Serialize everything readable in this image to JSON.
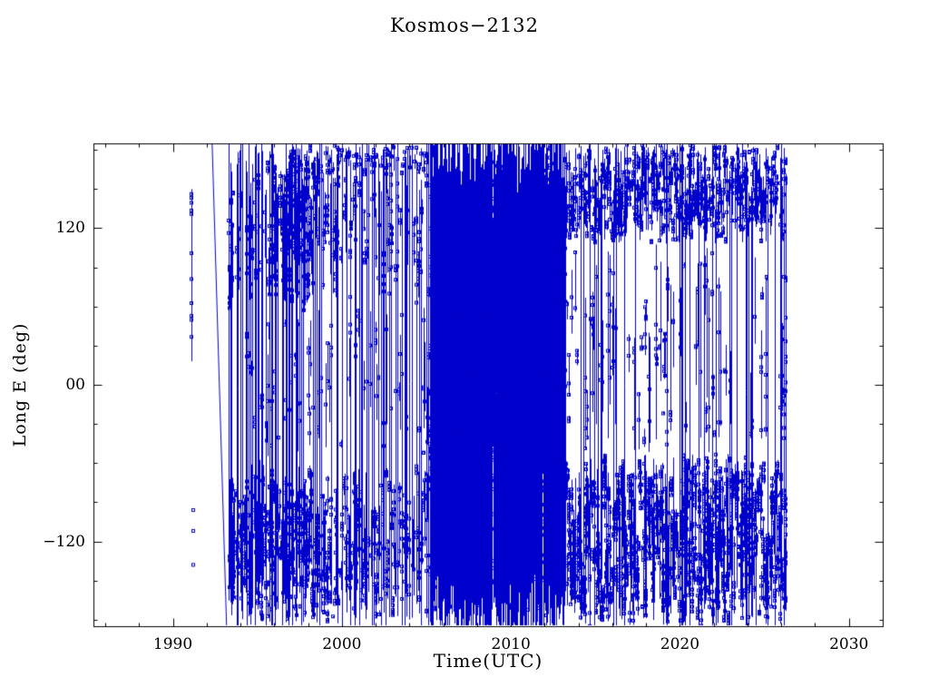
{
  "chart_data": {
    "type": "scatter",
    "title": "Kosmos−2132",
    "xlabel": "Time(UTC)",
    "ylabel": "Long E (deg)",
    "xlim": [
      1985.3,
      2032.0
    ],
    "ylim": [
      -185,
      185
    ],
    "xticks": [
      1990,
      2000,
      2010,
      2020,
      2030
    ],
    "x_minor_step": 2,
    "yticks": [
      -120,
      0,
      120
    ],
    "ytick_labels": [
      "−120",
      "00",
      "120"
    ],
    "y_minor_step": 30,
    "grid": false,
    "legend": null,
    "colors": {
      "data": "#0000cc",
      "axis": "#000000",
      "text": "#000000"
    },
    "pattern": {
      "seed": 1371,
      "events": [
        {
          "type": "markers_vline",
          "x": 1991.1,
          "ymin": 18,
          "ymax": 150,
          "n": 11
        },
        {
          "type": "markers",
          "pts": [
            [
              1991.18,
              -96
            ],
            [
              1991.2,
              -112
            ],
            [
              1991.22,
              -138
            ]
          ]
        },
        {
          "type": "polyline",
          "pts": [
            [
              1992.32,
              186
            ],
            [
              1993.18,
              -186
            ]
          ]
        },
        {
          "type": "era",
          "x0": 1993.3,
          "x1": 1998.5,
          "cols_per_year": 17,
          "full_p": 0.42,
          "bands": [
            {
              "y0": 55,
              "y1": 180,
              "p": 0.62,
              "mk": 7
            },
            {
              "y0": -180,
              "y1": -55,
              "p": 0.72,
              "mk": 7
            },
            {
              "y0": -55,
              "y1": 55,
              "p": 0.3,
              "mk": 3
            }
          ]
        },
        {
          "type": "era",
          "x0": 1995.7,
          "x1": 1998.5,
          "cols_per_year": 22,
          "full_p": 0.05,
          "bands": [
            {
              "y0": 60,
              "y1": 185,
              "p": 0.85,
              "mk": 8
            }
          ]
        },
        {
          "type": "era",
          "x0": 1993.5,
          "x1": 1999.3,
          "cols_per_year": 20,
          "full_p": 0.0,
          "bands": [
            {
              "y0": -182,
              "y1": -70,
              "p": 0.8,
              "mk": 8
            }
          ]
        },
        {
          "type": "era",
          "x0": 1998.5,
          "x1": 2005.2,
          "cols_per_year": 16,
          "full_p": 0.34,
          "bands": [
            {
              "y0": 60,
              "y1": 182,
              "p": 0.5,
              "mk": 6
            },
            {
              "y0": -182,
              "y1": -60,
              "p": 0.78,
              "mk": 8
            },
            {
              "y0": -60,
              "y1": 60,
              "p": 0.26,
              "mk": 3
            },
            {
              "y0": 160,
              "y1": 185,
              "p": 0.45,
              "mk": 2
            }
          ]
        },
        {
          "type": "era",
          "x0": 2005.2,
          "x1": 2013.2,
          "cols_per_year": 46,
          "full_p": 0.82,
          "bands": [
            {
              "y0": -185,
              "y1": 185,
              "p": 0.85,
              "mk": 11
            }
          ]
        },
        {
          "type": "era",
          "x0": 2013.2,
          "x1": 2026.3,
          "cols_per_year": 24,
          "full_p": 0.1,
          "bands": [
            {
              "y0": 108,
              "y1": 185,
              "p": 0.9,
              "mk": 6
            },
            {
              "y0": -185,
              "y1": -52,
              "p": 0.97,
              "mk": 12
            },
            {
              "y0": -52,
              "y1": 108,
              "p": 0.26,
              "mk": 3
            }
          ]
        },
        {
          "type": "era",
          "x0": 2026.0,
          "x1": 2026.35,
          "cols_per_year": 20,
          "full_p": 0.6,
          "bands": [
            {
              "y0": -60,
              "y1": 120,
              "p": 0.7,
              "mk": 5
            }
          ]
        }
      ]
    }
  }
}
